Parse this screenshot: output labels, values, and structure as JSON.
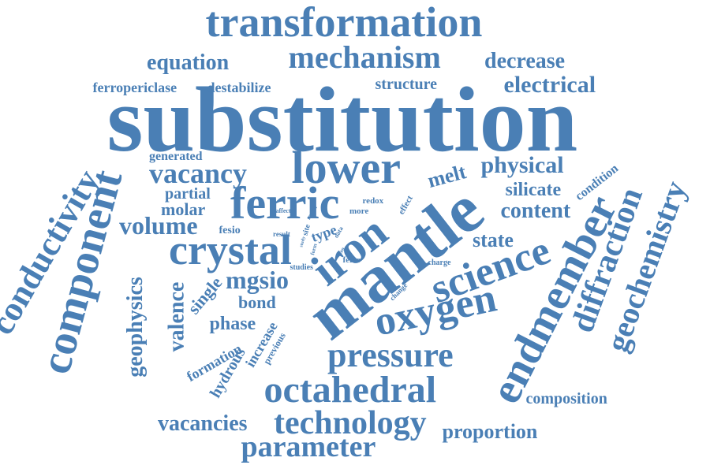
{
  "color": "#4a7fb5",
  "words": [
    "substitution",
    "transformation",
    "mechanism",
    "equation",
    "decrease",
    "electrical",
    "ferropericlase",
    "destabilize",
    "structure",
    "generated",
    "vacancy",
    "lower",
    "physical",
    "melt",
    "silicate",
    "condition",
    "content",
    "ferric",
    "partial",
    "molar",
    "volume",
    "fesio",
    "iron",
    "mantle",
    "crystal",
    "state",
    "science",
    "mgsio",
    "single",
    "bond",
    "oxygen",
    "phase",
    "valence",
    "pressure",
    "formation",
    "hydrous",
    "increase",
    "previous",
    "octahedral",
    "composition",
    "vacancies",
    "technology",
    "proportion",
    "parameter",
    "conductivity",
    "component",
    "geophysics",
    "endmember",
    "diffraction",
    "geochemistry",
    "redox",
    "more",
    "effect",
    "affect",
    "metal",
    "result",
    "type",
    "site",
    "form",
    "data",
    "study",
    "feo",
    "fefeo",
    "studies",
    "charge",
    "change"
  ]
}
